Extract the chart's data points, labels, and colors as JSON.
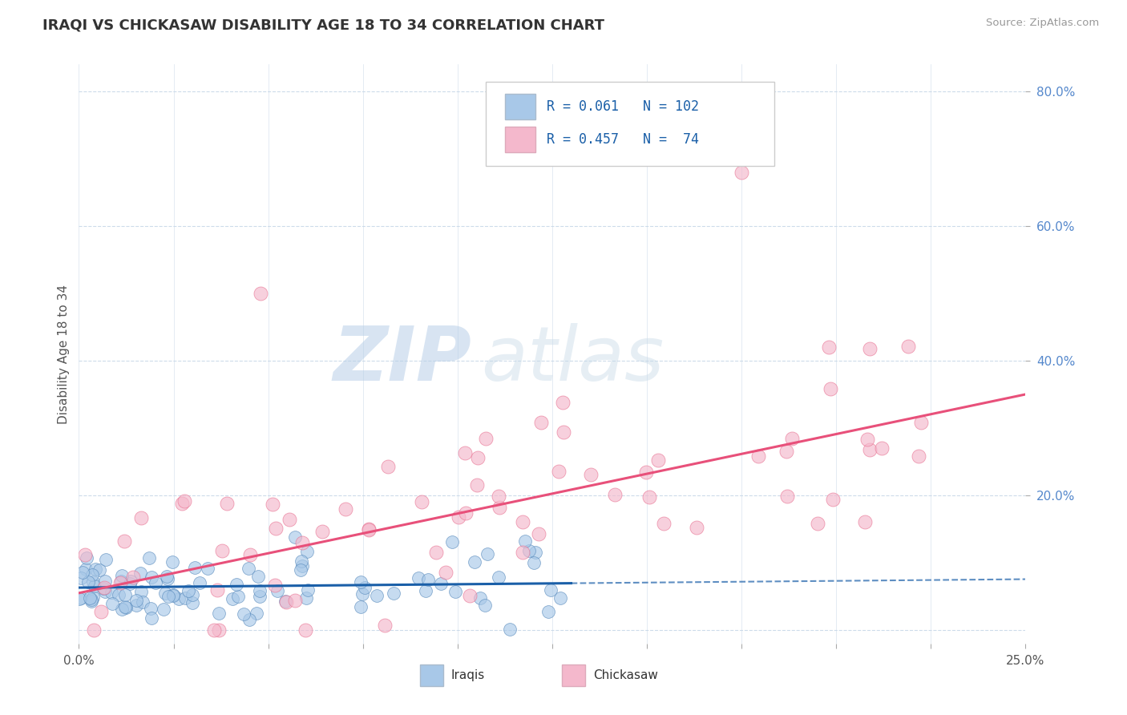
{
  "title": "IRAQI VS CHICKASAW DISABILITY AGE 18 TO 34 CORRELATION CHART",
  "source_text": "Source: ZipAtlas.com",
  "ylabel": "Disability Age 18 to 34",
  "y_ticks": [
    0.2,
    0.4,
    0.6,
    0.8
  ],
  "y_tick_labels": [
    "20.0%",
    "40.0%",
    "60.0%",
    "80.0%"
  ],
  "x_min": 0.0,
  "x_max": 0.25,
  "y_min": -0.02,
  "y_max": 0.84,
  "iraqis_R": 0.061,
  "iraqis_N": 102,
  "chickasaw_R": 0.457,
  "chickasaw_N": 74,
  "iraqi_color": "#a8c8e8",
  "iraqi_edge_color": "#5588bb",
  "chickasaw_color": "#f4b8cc",
  "chickasaw_edge_color": "#e87090",
  "iraqi_line_color": "#1a5fa8",
  "chickasaw_line_color": "#e8507a",
  "legend_label_1": "Iraqis",
  "legend_label_2": "Chickasaw",
  "watermark_zip": "ZIP",
  "watermark_atlas": "atlas",
  "background_color": "#ffffff",
  "plot_bg_color": "#ffffff",
  "grid_color": "#c8d8e8",
  "title_color": "#333333",
  "axis_label_color": "#555555",
  "tick_label_color": "#5588cc",
  "iraqi_trend_solid_end": 0.13,
  "chickasaw_intercept": 0.055,
  "chickasaw_slope": 1.18,
  "iraqi_intercept": 0.063,
  "iraqi_slope": 0.05
}
